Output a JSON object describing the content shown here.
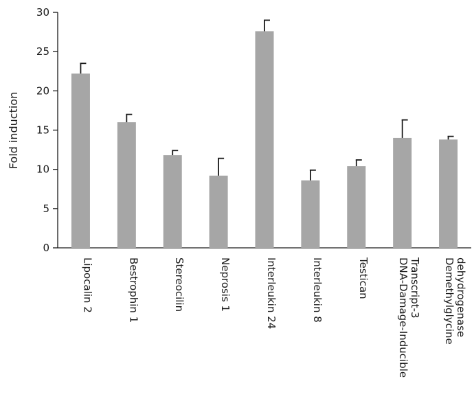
{
  "chart_data": {
    "type": "bar",
    "title": "",
    "xlabel": "",
    "ylabel": "Fold induction",
    "ylim": [
      0,
      30
    ],
    "yticks": [
      0,
      5,
      10,
      15,
      20,
      25,
      30
    ],
    "grid": false,
    "categories": [
      [
        "Lipocalin 2"
      ],
      [
        "Bestrophin 1"
      ],
      [
        "Stereocilin"
      ],
      [
        "Neprosis 1"
      ],
      [
        "Interleukin 24"
      ],
      [
        "Interleukin 8"
      ],
      [
        "Testican"
      ],
      [
        "DNA-Damage-Inducible",
        "Transcript-3"
      ],
      [
        "Demethylglycine",
        "dehydrogenase"
      ]
    ],
    "values": [
      22.2,
      16.0,
      11.8,
      9.2,
      27.6,
      8.6,
      10.4,
      14.0,
      13.8
    ],
    "error_upper": [
      1.3,
      1.0,
      0.6,
      2.2,
      1.4,
      1.3,
      0.8,
      2.3,
      0.4
    ],
    "bar_color": "#a6a6a6",
    "axis_color": "#1a1a1a"
  }
}
